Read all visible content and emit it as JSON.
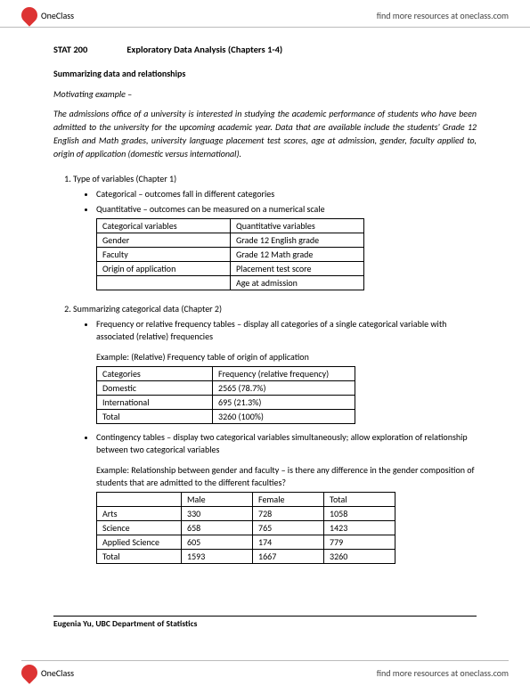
{
  "brand": {
    "name": "OneClass",
    "tagline": "find more resources at oneclass.com"
  },
  "doc": {
    "course_code": "STAT 200",
    "title": "Exploratory Data Analysis (Chapters 1-4)",
    "subheading": "Summarizing data and relationships",
    "motivating_label": "Motivating example –",
    "motivating_text": "The admissions office of a university is interested in studying the academic performance of students who have been admitted to the university for the upcoming academic year. Data that are available include the students' Grade 12 English and Math grades, university language placement test scores, age at admission, gender, faculty applied to, origin of application (domestic versus international)."
  },
  "section1": {
    "heading": "Type of variables (Chapter 1)",
    "bullets": [
      "Categorical – outcomes fall in different categories",
      "Quantitative – outcomes can be measured on a numerical scale"
    ],
    "vars_table": {
      "headers": [
        "Categorical variables",
        "Quantitative variables"
      ],
      "rows": [
        [
          "Gender",
          "Grade 12 English grade"
        ],
        [
          "Faculty",
          "Grade 12 Math grade"
        ],
        [
          "Origin of application",
          "Placement test score"
        ],
        [
          "",
          "Age at admission"
        ]
      ]
    }
  },
  "section2": {
    "heading": "Summarizing categorical data (Chapter 2)",
    "bullets": [
      "Frequency or relative frequency tables – display all categories of a single categorical variable with associated (relative) frequencies"
    ],
    "example1_label": "Example: (Relative) Frequency table of origin of application",
    "freq_table": {
      "headers": [
        "Categories",
        "Frequency (relative frequency)"
      ],
      "rows": [
        [
          "Domestic",
          "2565 (78.7%)"
        ],
        [
          "International",
          "695 (21.3%)"
        ],
        [
          "Total",
          "3260 (100%)"
        ]
      ]
    },
    "bullets2": [
      "Contingency tables – display two categorical variables simultaneously; allow exploration of relationship between two categorical variables"
    ],
    "example2_label": "Example: Relationship between gender and faculty – is there any difference in the gender composition of students that are admitted to the different faculties?",
    "cont_table": {
      "headers": [
        "",
        "Male",
        "Female",
        "Total"
      ],
      "rows": [
        [
          "Arts",
          "330",
          "728",
          "1058"
        ],
        [
          "Science",
          "658",
          "765",
          "1423"
        ],
        [
          "Applied Science",
          "605",
          "174",
          "779"
        ],
        [
          "Total",
          "1593",
          "1667",
          "3260"
        ]
      ]
    }
  },
  "footer": "Eugenia Yu, UBC Department of Statistics"
}
